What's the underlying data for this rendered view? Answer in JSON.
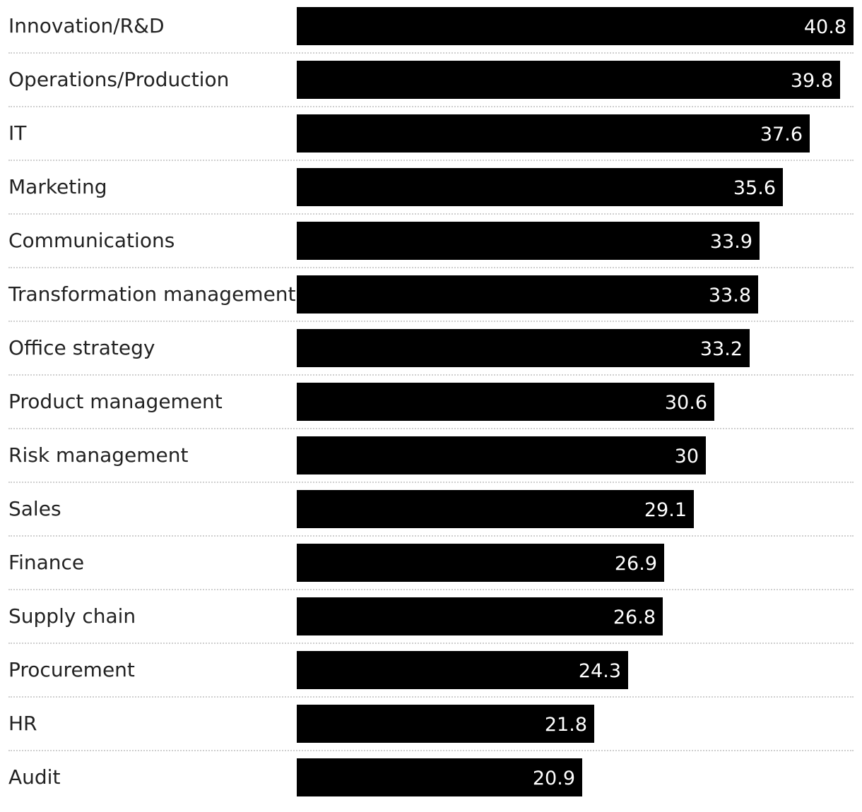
{
  "chart_data": {
    "type": "bar",
    "orientation": "horizontal",
    "categories": [
      "Innovation/R&D",
      "Operations/Production",
      "IT",
      "Marketing",
      "Communications",
      "Transformation management",
      "Office strategy",
      "Product management",
      "Risk management",
      "Sales",
      "Finance",
      "Supply chain",
      "Procurement",
      "HR",
      "Audit"
    ],
    "values": [
      40.8,
      39.8,
      37.6,
      35.6,
      33.9,
      33.8,
      33.2,
      30.6,
      30,
      29.1,
      26.9,
      26.8,
      24.3,
      21.8,
      20.9
    ],
    "value_labels": [
      "40.8",
      "39.8",
      "37.6",
      "35.6",
      "33.9",
      "33.8",
      "33.2",
      "30.6",
      "30",
      "29.1",
      "26.9",
      "26.8",
      "24.3",
      "21.8",
      "20.9"
    ],
    "xlim": [
      0,
      40.8
    ],
    "bar_color": "#000000",
    "label_color": "#ffffff",
    "grid": false,
    "legend": "none"
  }
}
